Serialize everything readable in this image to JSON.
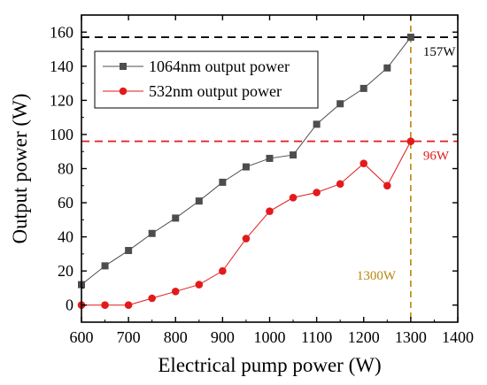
{
  "chart_data": {
    "type": "line",
    "xlabel": "Electrical pump power (W)",
    "ylabel": "Output power (W)",
    "xlim": [
      600,
      1400
    ],
    "ylim": [
      -10,
      170
    ],
    "xticks": [
      600,
      700,
      800,
      900,
      1000,
      1100,
      1200,
      1300,
      1400
    ],
    "yticks": [
      0,
      20,
      40,
      60,
      80,
      100,
      120,
      140,
      160
    ],
    "grid": false,
    "legend_position": "top-left",
    "series": [
      {
        "name": "1064nm output power",
        "marker": "square",
        "color": "#4d4d4d",
        "x": [
          600,
          650,
          700,
          750,
          800,
          850,
          900,
          950,
          1000,
          1050,
          1100,
          1150,
          1200,
          1250,
          1300
        ],
        "y": [
          12,
          23,
          32,
          42,
          51,
          61,
          72,
          81,
          86,
          88,
          106,
          118,
          127,
          139,
          157
        ]
      },
      {
        "name": "532nm  output power",
        "marker": "circle",
        "color": "#e31a1c",
        "x": [
          600,
          650,
          700,
          750,
          800,
          850,
          900,
          950,
          1000,
          1050,
          1100,
          1150,
          1200,
          1250,
          1300
        ],
        "y": [
          0,
          0,
          0,
          4,
          8,
          12,
          20,
          39,
          55,
          63,
          66,
          71,
          83,
          70,
          96
        ]
      }
    ],
    "reference_lines": [
      {
        "orientation": "horizontal",
        "value": 157,
        "color": "#000000",
        "label": "157W"
      },
      {
        "orientation": "horizontal",
        "value": 96,
        "color": "#e31a1c",
        "label": "96W"
      },
      {
        "orientation": "vertical",
        "value": 1300,
        "color": "#b8860b",
        "label": "1300W"
      }
    ]
  }
}
